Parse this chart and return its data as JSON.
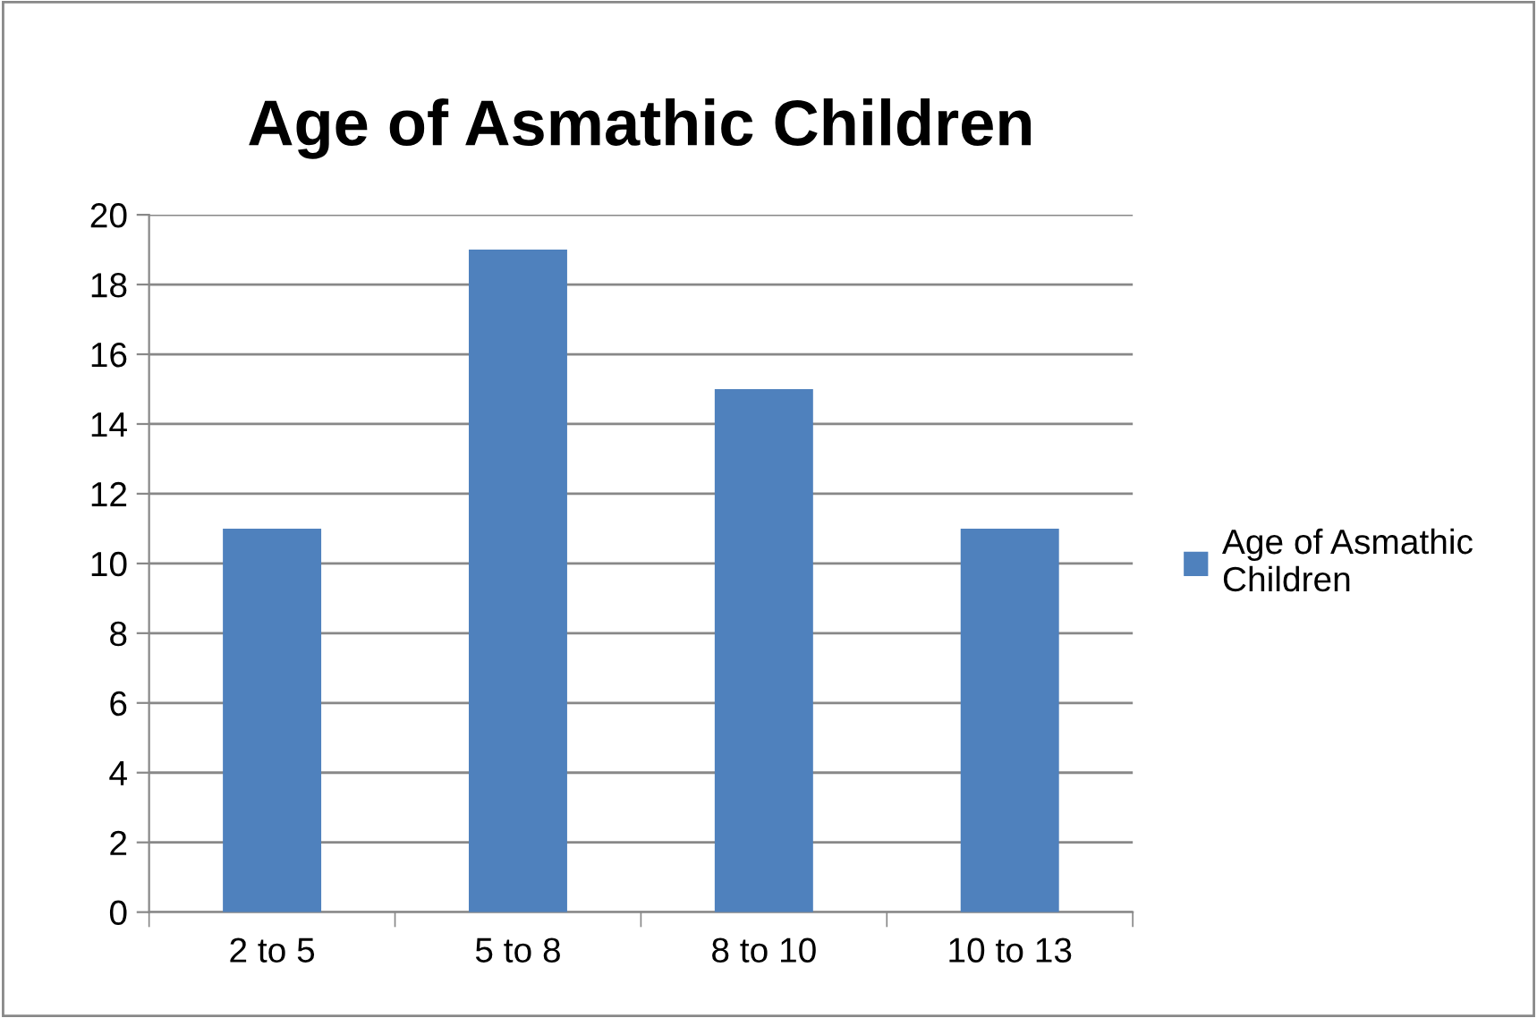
{
  "chart_data": {
    "type": "bar",
    "title": "Age of Asmathic Children",
    "categories": [
      "2 to 5",
      "5 to 8",
      "8 to 10",
      "10 to 13"
    ],
    "series": [
      {
        "name": "Age of Asmathic Children",
        "color": "#4f81bd",
        "values": [
          11,
          19,
          15,
          11
        ]
      }
    ],
    "ylim": [
      0,
      20
    ],
    "yticks": [
      0,
      2,
      4,
      6,
      8,
      10,
      12,
      14,
      16,
      18,
      20
    ],
    "grid": "y",
    "legend": "right"
  }
}
